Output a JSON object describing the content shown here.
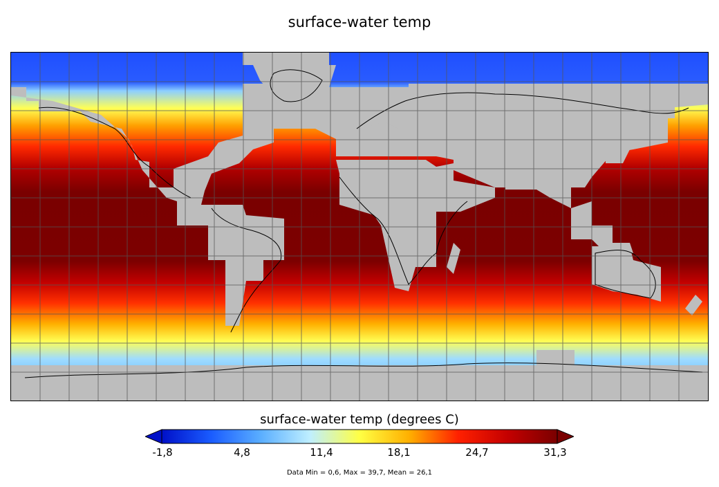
{
  "title": "surface-water temp",
  "colorbar": {
    "title": "surface-water temp (degrees C)",
    "ticks": [
      "-1,8",
      "4,8",
      "11,4",
      "18,1",
      "24,7",
      "31,3"
    ],
    "stops": [
      "#0010c8",
      "#1a5cff",
      "#5aaeff",
      "#bfefff",
      "#ffff44",
      "#ffb000",
      "#ff2000",
      "#c40000",
      "#7a0000"
    ],
    "under_color": "#0010c8",
    "over_color": "#7a0000"
  },
  "stats": "Data Min = 0,6, Max = 39,7, Mean = 26,1",
  "colors": {
    "land": "#bdbdbd",
    "coast": "#000000",
    "grid": "#555555"
  }
}
